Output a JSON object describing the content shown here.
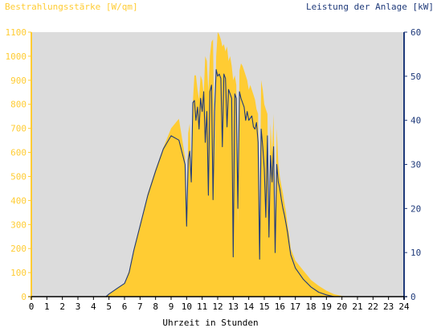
{
  "chart_data": {
    "type": "area",
    "left_axis_title": "Bestrahlungsstärke [W/qm]",
    "right_axis_title": "Leistung der Anlage [kW]",
    "xlabel": "Uhrzeit in Stunden",
    "xlim": [
      0,
      24
    ],
    "y_left_lim": [
      0,
      1100
    ],
    "y_right_lim": [
      0,
      60
    ],
    "x_ticks": [
      "0",
      "1",
      "2",
      "3",
      "4",
      "5",
      "6",
      "7",
      "8",
      "9",
      "10",
      "11",
      "12",
      "13",
      "14",
      "15",
      "16",
      "17",
      "18",
      "19",
      "20",
      "21",
      "22",
      "23",
      "24"
    ],
    "y_left_ticks": [
      "0",
      "100",
      "200",
      "300",
      "400",
      "500",
      "600",
      "700",
      "800",
      "900",
      "1000",
      "1100"
    ],
    "y_right_ticks": [
      "0",
      "10",
      "20",
      "30",
      "40",
      "50",
      "60"
    ],
    "grid": false,
    "colors": {
      "irradiance": "#FFCC33",
      "power": "#1F3A7A",
      "plot_background": "#DCDCDC",
      "left_axis": "#FFCC33",
      "right_axis": "#1F3A7A"
    },
    "series": [
      {
        "axis": "left",
        "style": "area",
        "x": [
          0,
          4.8,
          5.0,
          5.5,
          6.0,
          6.3,
          6.6,
          7.0,
          7.5,
          8.0,
          8.5,
          9.0,
          9.5,
          9.9,
          10.0,
          10.1,
          10.2,
          10.3,
          10.4,
          10.5,
          10.6,
          10.7,
          10.8,
          10.9,
          11.0,
          11.1,
          11.2,
          11.3,
          11.4,
          11.5,
          11.6,
          11.7,
          11.8,
          11.9,
          12.0,
          12.1,
          12.2,
          12.3,
          12.4,
          12.5,
          12.6,
          12.7,
          12.8,
          12.9,
          13.0,
          13.1,
          13.2,
          13.3,
          13.4,
          13.5,
          13.6,
          13.7,
          13.8,
          13.9,
          14.0,
          14.1,
          14.2,
          14.3,
          14.4,
          14.5,
          14.6,
          14.7,
          14.8,
          14.9,
          15.0,
          15.1,
          15.2,
          15.3,
          15.4,
          15.5,
          15.6,
          15.7,
          15.8,
          15.9,
          16.0,
          16.1,
          16.2,
          16.3,
          16.4,
          16.5,
          16.6,
          16.7,
          17.0,
          17.5,
          18.0,
          18.5,
          19.0,
          19.5,
          20.0,
          20.3,
          20.5,
          21.0,
          24.0
        ],
        "values": [
          0,
          0,
          10,
          35,
          55,
          110,
          200,
          300,
          430,
          530,
          620,
          700,
          740,
          580,
          300,
          680,
          720,
          500,
          810,
          920,
          920,
          860,
          820,
          920,
          900,
          840,
          1000,
          980,
          850,
          1000,
          1060,
          1070,
          560,
          1000,
          1100,
          1090,
          1070,
          1040,
          1050,
          1020,
          1040,
          980,
          1000,
          960,
          900,
          920,
          880,
          300,
          940,
          970,
          960,
          940,
          920,
          900,
          860,
          880,
          860,
          840,
          820,
          780,
          760,
          280,
          900,
          860,
          800,
          780,
          760,
          300,
          720,
          600,
          760,
          300,
          700,
          560,
          500,
          460,
          430,
          390,
          350,
          300,
          260,
          200,
          150,
          110,
          70,
          45,
          25,
          10,
          3,
          0,
          0,
          0,
          0
        ]
      },
      {
        "axis": "right",
        "style": "line",
        "x": [
          0,
          4.8,
          5.0,
          5.5,
          6.0,
          6.3,
          6.6,
          7.0,
          7.5,
          8.0,
          8.5,
          9.0,
          9.5,
          9.9,
          10.0,
          10.1,
          10.2,
          10.3,
          10.4,
          10.5,
          10.6,
          10.7,
          10.8,
          10.9,
          11.0,
          11.1,
          11.2,
          11.3,
          11.4,
          11.5,
          11.6,
          11.7,
          11.8,
          11.9,
          12.0,
          12.1,
          12.2,
          12.3,
          12.4,
          12.5,
          12.6,
          12.7,
          12.8,
          12.9,
          13.0,
          13.1,
          13.2,
          13.3,
          13.4,
          13.5,
          13.6,
          13.7,
          13.8,
          13.9,
          14.0,
          14.1,
          14.2,
          14.3,
          14.4,
          14.5,
          14.6,
          14.7,
          14.8,
          14.9,
          15.0,
          15.1,
          15.2,
          15.3,
          15.4,
          15.5,
          15.6,
          15.7,
          15.8,
          15.9,
          16.0,
          16.1,
          16.2,
          16.3,
          16.4,
          16.5,
          16.6,
          16.7,
          17.0,
          17.5,
          18.0,
          18.5,
          19.0,
          19.5,
          20.0,
          20.3,
          20.5,
          21.0,
          24.0
        ],
        "values": [
          0,
          0,
          0.6,
          1.8,
          3.0,
          5.5,
          10.5,
          16.0,
          23.0,
          28.5,
          33.5,
          36.5,
          35.5,
          30.0,
          16.0,
          31.0,
          33.0,
          26.0,
          44.0,
          44.5,
          40.0,
          43.0,
          38.0,
          45.0,
          42.0,
          46.5,
          35.0,
          42.0,
          23.0,
          46.5,
          48.0,
          22.0,
          42.0,
          51.5,
          50.0,
          50.5,
          49.5,
          34.0,
          50.5,
          49.5,
          38.5,
          47.0,
          46.0,
          45.0,
          9.0,
          46.0,
          45.0,
          20.0,
          46.5,
          45.0,
          44.0,
          43.0,
          40.0,
          42.0,
          40.0,
          40.5,
          41.0,
          38.5,
          38.0,
          39.5,
          35.0,
          8.5,
          38.0,
          34.0,
          29.0,
          18.0,
          36.5,
          13.5,
          32.0,
          26.0,
          34.0,
          10.0,
          30.0,
          26.0,
          24.5,
          22.0,
          20.0,
          18.5,
          16.5,
          14.5,
          12.0,
          9.5,
          6.5,
          4.0,
          2.2,
          1.0,
          0.4,
          0,
          0,
          0,
          0,
          0,
          0
        ]
      }
    ]
  }
}
